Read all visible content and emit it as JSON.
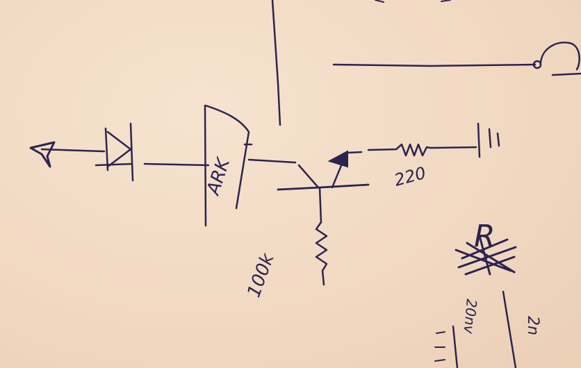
{
  "photo": {
    "subject": "hand-drawn circuit sketch on paper",
    "ink_color": "#2b2350",
    "paper_color": "#f2dcc6"
  },
  "labels": {
    "block_label": "ARK",
    "resistor_top_label": "220",
    "resistor_bottom_label": "100k",
    "crossed_label": "R"
  },
  "annotation_text": {
    "bottom_right_col1": "2n",
    "bottom_right_col2": "20nv"
  }
}
